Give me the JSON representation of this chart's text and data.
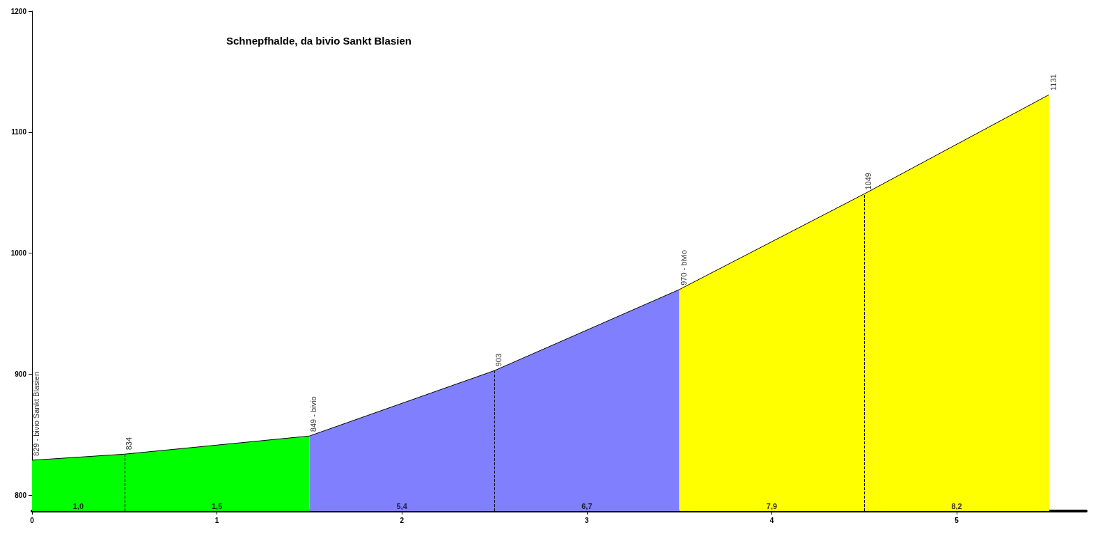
{
  "chart_data": {
    "type": "area",
    "title": "Schnepfhalde, da bivio Sankt Blasien",
    "series": [
      {
        "color": "#00ff00",
        "x": [
          0,
          0.5,
          1.5
        ],
        "values": [
          829,
          834,
          849
        ]
      },
      {
        "color": "#8080ff",
        "x": [
          1.5,
          2.5,
          3.5
        ],
        "values": [
          849,
          903,
          970
        ]
      },
      {
        "color": "#ffff00",
        "x": [
          3.5,
          4.5,
          5.5
        ],
        "values": [
          970,
          1049,
          1131
        ]
      }
    ],
    "xlim": [
      0,
      5.7
    ],
    "xticks": [
      0,
      1,
      2,
      3,
      4,
      5
    ],
    "ylim": [
      787,
      1200
    ],
    "yticks": [
      800,
      900,
      1000,
      1100,
      1200
    ],
    "grid": false,
    "ref_lines": [
      {
        "axis": "x",
        "value": 0.5,
        "line_style": "dashed"
      },
      {
        "axis": "x",
        "value": 2.5,
        "line_style": "dashed"
      },
      {
        "axis": "x",
        "value": 4.5,
        "line_style": "dashed"
      }
    ],
    "annotations": [
      {
        "text": "829 - bivio Sankt Blasien",
        "x": 0,
        "y": 829
      },
      {
        "text": "834",
        "x": 0.5,
        "y": 834
      },
      {
        "text": "849 - bivio",
        "x": 1.5,
        "y": 849
      },
      {
        "text": "903",
        "x": 2.5,
        "y": 903
      },
      {
        "text": "970 - bivio",
        "x": 3.5,
        "y": 970
      },
      {
        "text": "1049",
        "x": 4.5,
        "y": 1049
      },
      {
        "text": "1131",
        "x": 5.5,
        "y": 1131
      },
      {
        "text": "1,0",
        "x": 0.25,
        "y": 787
      },
      {
        "text": "1,5",
        "x": 1,
        "y": 787
      },
      {
        "text": "5,4",
        "x": 2,
        "y": 787
      },
      {
        "text": "6,7",
        "x": 3,
        "y": 787
      },
      {
        "text": "7,9",
        "x": 4,
        "y": 787
      },
      {
        "text": "8,2",
        "x": 5,
        "y": 787
      }
    ]
  }
}
